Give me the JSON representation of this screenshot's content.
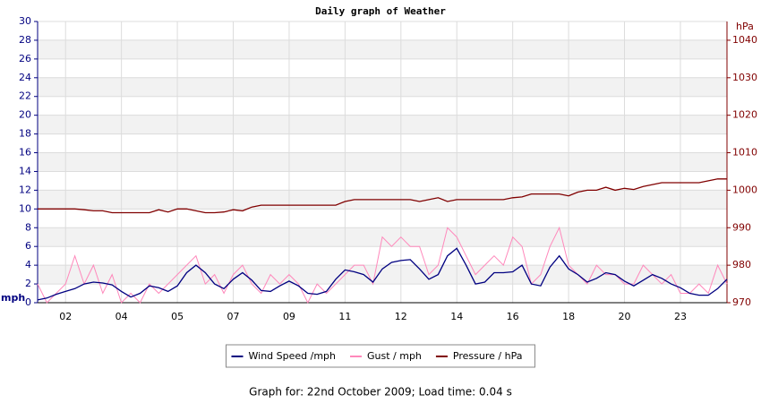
{
  "chart_data": {
    "type": "line",
    "title": "Daily graph of Weather",
    "y_label": "mph",
    "y2_label": "hPa",
    "footer": "Graph for: 22nd October 2009; Load time: 0.04 s",
    "categories": [
      null,
      null,
      null,
      "02",
      null,
      null,
      null,
      null,
      null,
      "04",
      null,
      null,
      null,
      null,
      null,
      "05",
      null,
      null,
      null,
      null,
      null,
      "07",
      null,
      null,
      null,
      null,
      null,
      "09",
      null,
      null,
      null,
      null,
      null,
      "11",
      null,
      null,
      null,
      null,
      null,
      "12",
      null,
      null,
      null,
      null,
      null,
      "14",
      null,
      null,
      null,
      null,
      null,
      "16",
      null,
      null,
      null,
      null,
      null,
      "18",
      null,
      null,
      null,
      null,
      null,
      "20",
      null,
      null,
      null,
      null,
      null,
      "23",
      null,
      null,
      null,
      null,
      null
    ],
    "ylim": [
      0,
      30
    ],
    "yticks": [
      0,
      2,
      4,
      6,
      8,
      10,
      12,
      14,
      16,
      18,
      20,
      22,
      24,
      26,
      28,
      30
    ],
    "y2lim": [
      970,
      1045
    ],
    "y2ticks": [
      970,
      980,
      990,
      1000,
      1010,
      1020,
      1030,
      1040
    ],
    "grid": true,
    "legend": "bottom",
    "series": [
      {
        "name": "Wind Speed /mph",
        "color": "#000080",
        "values": [
          0.3,
          0.5,
          0.9,
          1.2,
          1.5,
          2.0,
          2.2,
          2.1,
          1.9,
          1.2,
          0.6,
          1.0,
          1.8,
          1.6,
          1.2,
          1.8,
          3.2,
          4.0,
          3.2,
          2.0,
          1.5,
          2.5,
          3.2,
          2.4,
          1.3,
          1.2,
          1.8,
          2.3,
          1.8,
          1.0,
          0.9,
          1.2,
          2.5,
          3.5,
          3.3,
          3.0,
          2.2,
          3.6,
          4.3,
          4.5,
          4.6,
          3.6,
          2.5,
          3.0,
          5.0,
          5.8,
          4.0,
          2.0,
          2.2,
          3.2,
          3.2,
          3.3,
          4.0,
          2.0,
          1.8,
          3.8,
          5.0,
          3.6,
          3.0,
          2.2,
          2.6,
          3.2,
          3.0,
          2.3,
          1.8,
          2.4,
          3.0,
          2.6,
          2.0,
          1.6,
          1.0,
          0.8,
          0.8,
          1.5,
          2.5
        ]
      },
      {
        "name": "Gust / mph",
        "color": "#ff88bb",
        "values": [
          2,
          0,
          1,
          2,
          5,
          2,
          4,
          1,
          3,
          0,
          1,
          0,
          2,
          1,
          2,
          3,
          4,
          5,
          2,
          3,
          1,
          3,
          4,
          2,
          1,
          3,
          2,
          3,
          2,
          0,
          2,
          1,
          2,
          3,
          4,
          4,
          2,
          7,
          6,
          7,
          6,
          6,
          3,
          4,
          8,
          7,
          5,
          3,
          4,
          5,
          4,
          7,
          6,
          2,
          3,
          6,
          8,
          4,
          3,
          2,
          4,
          3,
          3,
          2,
          2,
          4,
          3,
          2,
          3,
          1,
          1,
          2,
          1,
          4,
          2
        ]
      },
      {
        "name": "Pressure / hPa",
        "color": "#800000",
        "axis": "y2",
        "values": [
          995,
          995,
          995,
          995,
          995,
          994.8,
          994.5,
          994.5,
          994,
          994,
          994,
          994,
          994,
          994.8,
          994.2,
          995,
          995,
          994.5,
          994,
          994,
          994.2,
          994.8,
          994.5,
          995.5,
          996,
          996,
          996,
          996,
          996,
          996,
          996,
          996,
          996,
          997,
          997.5,
          997.5,
          997.5,
          997.5,
          997.5,
          997.5,
          997.5,
          997,
          997.5,
          998,
          997,
          997.5,
          997.5,
          997.5,
          997.5,
          997.5,
          997.5,
          998,
          998.2,
          999,
          999,
          999,
          999,
          998.5,
          999.5,
          1000,
          1000,
          1000.8,
          1000,
          1000.5,
          1000.2,
          1001,
          1001.5,
          1002,
          1002,
          1002,
          1002,
          1002,
          1002.5,
          1003,
          1003
        ]
      }
    ]
  }
}
